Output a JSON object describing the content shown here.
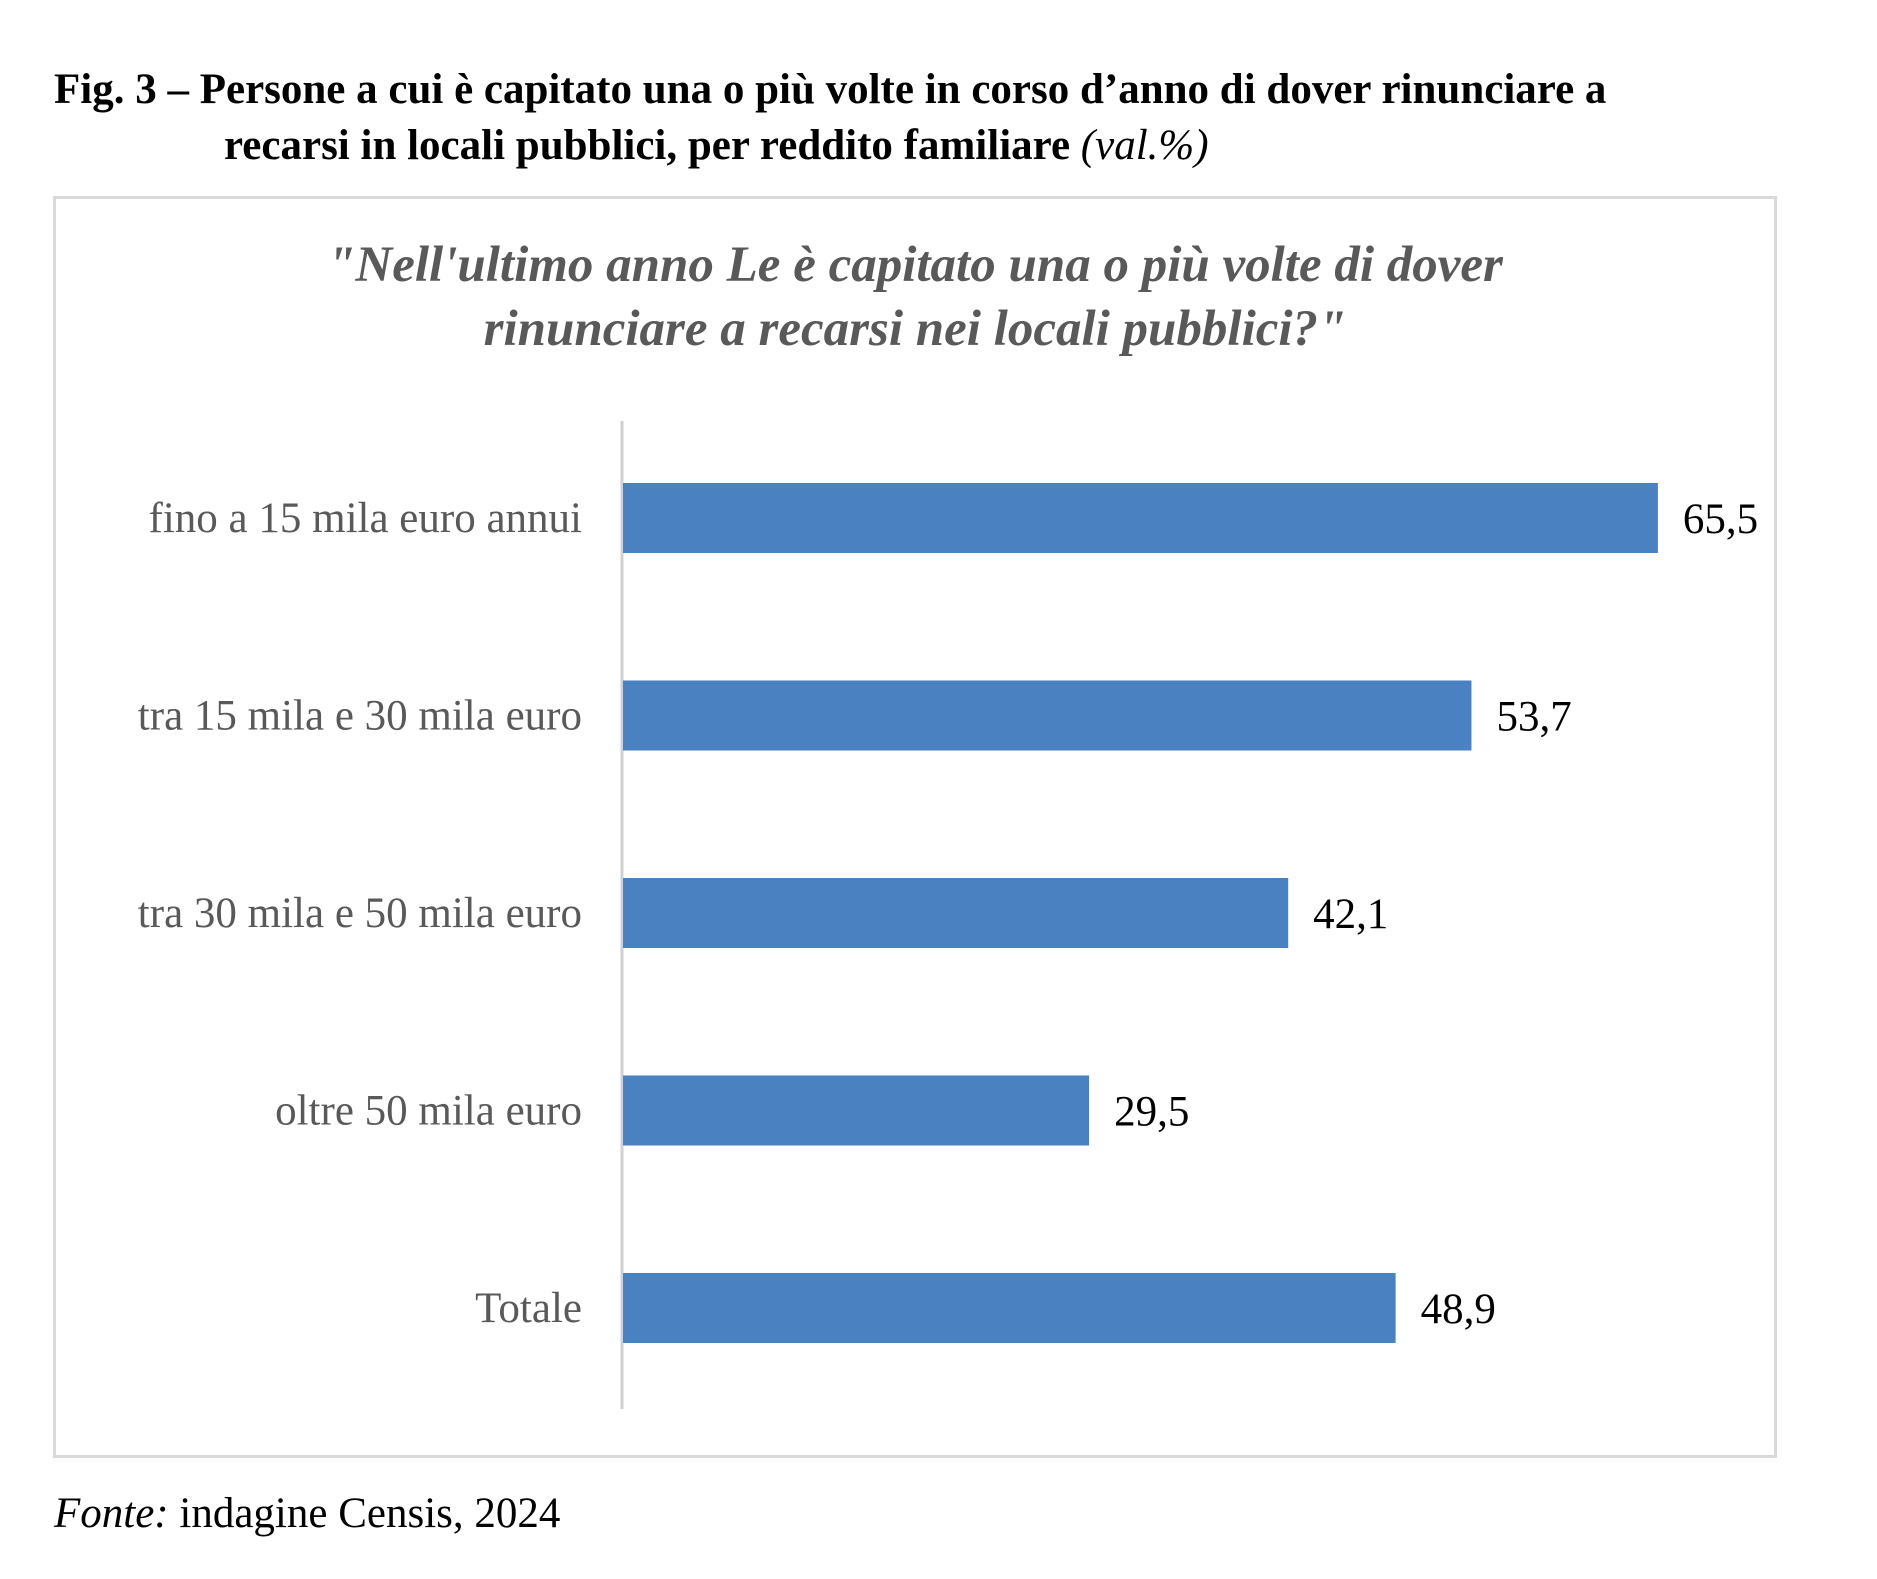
{
  "caption": {
    "line1": "Fig. 3 – Persone a cui è capitato una o più volte in corso d’anno di dover rinunciare a",
    "line2": "recarsi in locali pubblici, per reddito familiare",
    "unit": "(val.%)"
  },
  "chart_data": {
    "type": "bar",
    "orientation": "horizontal",
    "title_line1": "\"Nell'ultimo anno Le è capitato una o più volte di dover",
    "title_line2": "rinunciare a  recarsi nei locali pubblici?\"",
    "categories": [
      "fino a 15 mila euro annui",
      "tra 15 mila e 30 mila euro",
      "tra 30 mila e 50 mila euro",
      "oltre 50 mila euro",
      "Totale"
    ],
    "values": [
      65.5,
      53.7,
      42.1,
      29.5,
      48.9
    ],
    "value_labels": [
      "65,5",
      "53,7",
      "42,1",
      "29,5",
      "48,9"
    ],
    "bar_color": "#4a81c0",
    "xlim": [
      0,
      70
    ],
    "xlabel": "",
    "ylabel": "",
    "grid": false,
    "legend": "none"
  },
  "source": {
    "label": "Fonte:",
    "text": " indagine Censis, 2024"
  }
}
